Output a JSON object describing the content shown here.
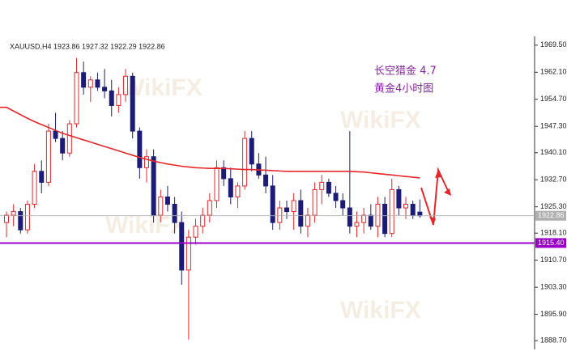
{
  "chart_data": {
    "type": "candlestick",
    "title": "XAUUSD,H4  1923.86 1927.32 1922.29 1922.86",
    "annotations": [
      "长空猎金  4.7",
      "黄金4小时图"
    ],
    "watermark": "WikiFX",
    "up_color": "#e8262a",
    "down_color": "#1c1c78",
    "open": [
      1921,
      1923,
      1924,
      1919,
      1926,
      1935,
      1932,
      1946,
      1944,
      1940,
      1948,
      1962,
      1958,
      1960,
      1958,
      1957,
      1953,
      1956,
      1961,
      1946,
      1936,
      1939,
      1923,
      1928,
      1926,
      1921,
      1908,
      1917,
      1920,
      1923,
      1927,
      1936,
      1933,
      1928,
      1931,
      1944,
      1937,
      1934,
      1931,
      1921,
      1925,
      1924,
      1927,
      1920,
      1923,
      1930,
      1932,
      1929,
      1927,
      1925,
      1920,
      1921,
      1923,
      1920,
      1926,
      1918,
      1930,
      1925,
      1926,
      1923.86
    ],
    "high": [
      1924,
      1926,
      1925,
      1927,
      1937,
      1938,
      1948,
      1951,
      1946,
      1949,
      1966,
      1965,
      1961,
      1962,
      1963,
      1960,
      1958,
      1963,
      1962,
      1947,
      1941,
      1941,
      1930,
      1931,
      1928,
      1924,
      1919,
      1922,
      1925,
      1929,
      1938,
      1938,
      1936,
      1932,
      1946,
      1946,
      1940,
      1939,
      1934,
      1927,
      1927,
      1929,
      1930,
      1925,
      1932,
      1934,
      1933,
      1931,
      1929,
      1946,
      1924,
      1925,
      1926,
      1928,
      1928,
      1933,
      1931,
      1928,
      1927,
      1927.32
    ],
    "low": [
      1917,
      1920,
      1918,
      1918,
      1925,
      1929,
      1931,
      1943,
      1938,
      1939,
      1947,
      1956,
      1954,
      1957,
      1955,
      1950,
      1951,
      1954,
      1944,
      1933,
      1932,
      1921,
      1921,
      1924,
      1918,
      1904,
      1889,
      1915,
      1918,
      1921,
      1925,
      1931,
      1926,
      1925,
      1930,
      1935,
      1933,
      1929,
      1919,
      1919,
      1922,
      1919,
      1918,
      1917,
      1921,
      1926,
      1928,
      1925,
      1923,
      1918,
      1917,
      1918,
      1919,
      1917,
      1917,
      1917,
      1923,
      1922,
      1922,
      1922.29
    ],
    "close": [
      1923,
      1924,
      1919,
      1926,
      1935,
      1932,
      1946,
      1944,
      1940,
      1948,
      1962,
      1958,
      1960,
      1958,
      1957,
      1953,
      1956,
      1961,
      1946,
      1936,
      1939,
      1923,
      1928,
      1926,
      1921,
      1908,
      1917,
      1920,
      1923,
      1927,
      1936,
      1933,
      1928,
      1931,
      1944,
      1937,
      1934,
      1931,
      1921,
      1925,
      1924,
      1927,
      1920,
      1923,
      1930,
      1932,
      1929,
      1927,
      1925,
      1920,
      1921,
      1923,
      1920,
      1926,
      1918,
      1930,
      1925,
      1926,
      1923,
      1922.86
    ],
    "moving_average": {
      "color": "#e8262a",
      "values": [
        1952.5,
        1951.5,
        1950.5,
        1949.5,
        1948.6,
        1947.8,
        1947,
        1946.2,
        1945.4,
        1944.8,
        1944.2,
        1943.6,
        1943,
        1942.4,
        1941.8,
        1941.2,
        1940.6,
        1940,
        1939.4,
        1938.8,
        1938.3,
        1937.8,
        1937.4,
        1937,
        1936.7,
        1936.4,
        1936.2,
        1936,
        1935.9,
        1935.8,
        1935.8,
        1935.8,
        1935.7,
        1935.6,
        1935.5,
        1935.5,
        1935.4,
        1935.3,
        1935.2,
        1935.1,
        1935,
        1935,
        1935,
        1935,
        1935,
        1935,
        1935,
        1935,
        1935,
        1935,
        1934.9,
        1934.8,
        1934.6,
        1934.4,
        1934.2,
        1934,
        1933.8,
        1933.6,
        1933.4,
        1933.2
      ]
    },
    "levels": [
      {
        "value": 1922.86,
        "label": "1922.86",
        "color": "#b0b0b0"
      },
      {
        "value": 1915.4,
        "label": "1915.40",
        "color": "#9a00c8"
      }
    ],
    "ylim": [
      1886.3,
      1971.9
    ],
    "yticks": [
      {
        "value": 1969.5,
        "label": "1969.50"
      },
      {
        "value": 1962.1,
        "label": "1962.10"
      },
      {
        "value": 1954.7,
        "label": "1954.70"
      },
      {
        "value": 1947.3,
        "label": "1947.30"
      },
      {
        "value": 1940.1,
        "label": "1940.10"
      },
      {
        "value": 1932.7,
        "label": "1932.70"
      },
      {
        "value": 1925.3,
        "label": "1925.30"
      },
      {
        "value": 1918.1,
        "label": "1918.10"
      },
      {
        "value": 1910.7,
        "label": "1910.70"
      },
      {
        "value": 1903.3,
        "label": "1903.30"
      },
      {
        "value": 1895.9,
        "label": "1895.90"
      },
      {
        "value": 1888.7,
        "label": "1888.70"
      }
    ]
  }
}
